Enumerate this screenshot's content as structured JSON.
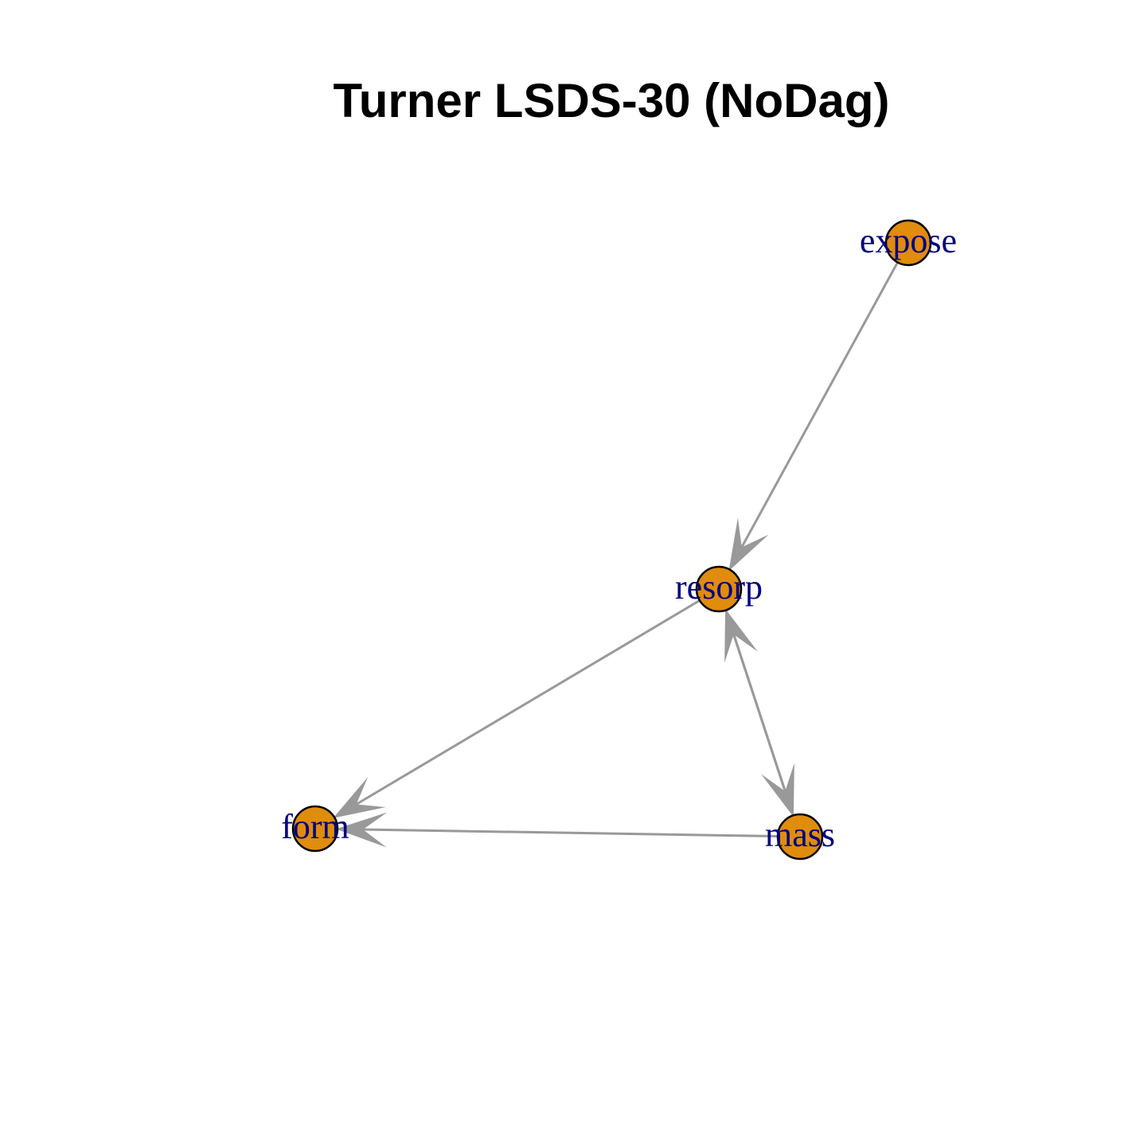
{
  "title": "Turner LSDS-30 (NoDag)",
  "colors": {
    "node_fill": "#e08c0c",
    "node_stroke": "#000000",
    "edge": "#999999",
    "label": "#00007f",
    "background": "#ffffff"
  },
  "nodes": [
    {
      "id": "expose",
      "label": "expose"
    },
    {
      "id": "resorp",
      "label": "resorp"
    },
    {
      "id": "form",
      "label": "form"
    },
    {
      "id": "mass",
      "label": "mass"
    }
  ],
  "edges": [
    {
      "from": "expose",
      "to": "resorp"
    },
    {
      "from": "resorp",
      "to": "form"
    },
    {
      "from": "mass",
      "to": "form"
    },
    {
      "from": "mass",
      "to": "resorp"
    },
    {
      "from": "resorp",
      "to": "mass"
    }
  ]
}
